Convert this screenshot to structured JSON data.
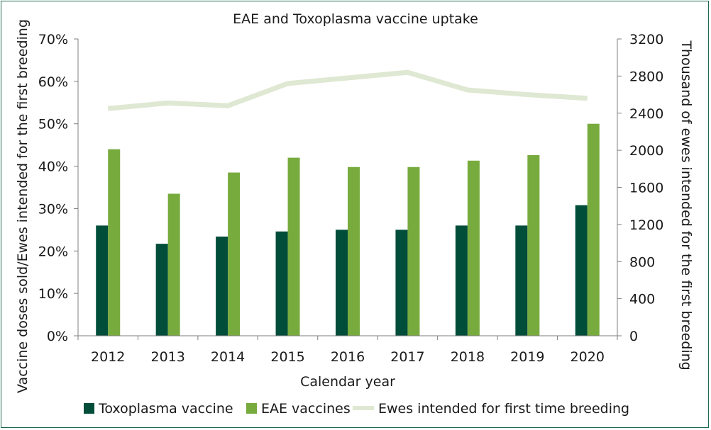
{
  "chart_data": {
    "type": "bar",
    "title": "EAE and Toxoplasma vaccine uptake",
    "xlabel": "Calendar year",
    "ylabel": "Vaccine doses sold/Ewes intended for the first breeding",
    "y2label": "Thousand of ewes intended for the first breeding",
    "categories": [
      "2012",
      "2013",
      "2014",
      "2015",
      "2016",
      "2017",
      "2018",
      "2019",
      "2020"
    ],
    "ylim": [
      0,
      70
    ],
    "yticks": [
      "0%",
      "10%",
      "20%",
      "30%",
      "40%",
      "50%",
      "60%",
      "70%"
    ],
    "y2lim": [
      0,
      3200
    ],
    "y2ticks": [
      "0",
      "400",
      "800",
      "1200",
      "1600",
      "2000",
      "2400",
      "2800",
      "3200"
    ],
    "series": [
      {
        "name": "Toxoplasma vaccine",
        "kind": "bar",
        "axis": "left",
        "color": "#004d3a",
        "values": [
          26,
          21.7,
          23.4,
          24.6,
          25,
          25,
          26,
          26,
          30.8
        ]
      },
      {
        "name": "EAE vaccines",
        "kind": "bar",
        "axis": "left",
        "color": "#78ab3e",
        "values": [
          44,
          33.5,
          38.5,
          42,
          39.8,
          39.8,
          41.3,
          42.6,
          50
        ]
      },
      {
        "name": "Ewes intended for first time breeding",
        "kind": "line",
        "axis": "right",
        "color": "#dfe8d2",
        "values": [
          2450,
          2510,
          2480,
          2720,
          2780,
          2840,
          2650,
          2600,
          2560
        ]
      }
    ],
    "grid": false,
    "legend_position": "bottom"
  }
}
